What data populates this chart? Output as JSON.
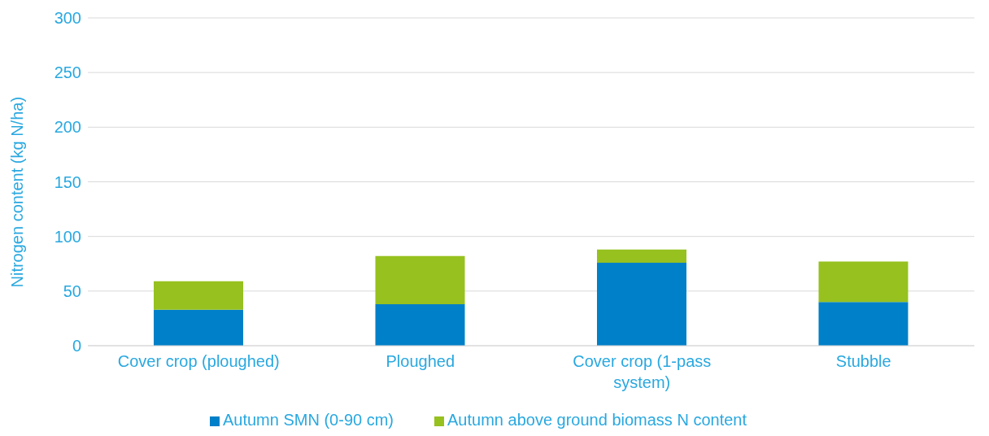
{
  "chart_data": {
    "type": "bar",
    "stacked": true,
    "ylabel": "Nitrogen content (kg N/ha)",
    "categories": [
      "Cover crop (ploughed)",
      "Ploughed",
      "Cover crop (1-pass system)",
      "Stubble"
    ],
    "series": [
      {
        "name": "Autumn SMN (0-90 cm)",
        "color": "#0080c8",
        "values": [
          33,
          38,
          76,
          40
        ]
      },
      {
        "name": "Autumn above ground biomass N content",
        "color": "#96c11f",
        "values": [
          26,
          44,
          12,
          37
        ]
      }
    ],
    "ylim": [
      0,
      300
    ],
    "yticks": [
      0,
      50,
      100,
      150,
      200,
      250,
      300
    ],
    "grid": "y",
    "legend": "bottom"
  }
}
